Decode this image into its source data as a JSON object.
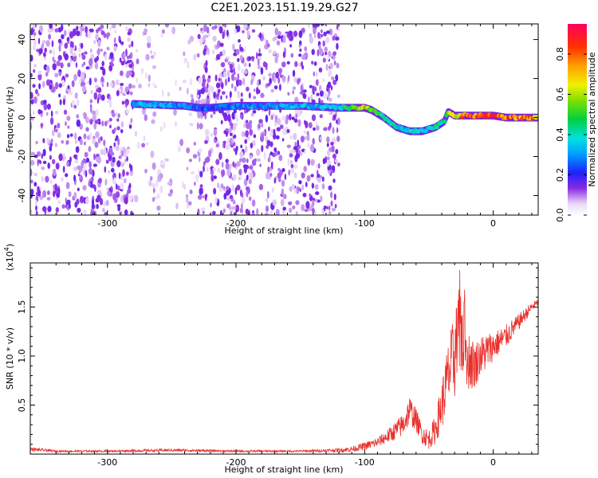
{
  "title": "C2E1.2023.151.19.29.G27",
  "chart_data": [
    {
      "type": "heatmap",
      "xlabel": "Height of straight line (km)",
      "ylabel": "Frequency (Hz)",
      "xlim": [
        -360,
        35
      ],
      "ylim": [
        -50,
        48
      ],
      "xticks": [
        -300,
        -200,
        -100,
        0
      ],
      "yticks": [
        -40,
        -20,
        0,
        20,
        40
      ],
      "xtick_labels": [
        "-300",
        "-200",
        "-100",
        "0"
      ],
      "ytick_labels": [
        "-40",
        "-20",
        "0",
        "20",
        "40"
      ],
      "grid": false,
      "colorbar": {
        "label": "Normalized spectral amplitude",
        "range": [
          0,
          0.95
        ],
        "ticks": [
          "0.0",
          "0.2",
          "0.4",
          "0.6",
          "0.8"
        ]
      },
      "ridge": {
        "x": [
          -280,
          -240,
          -230,
          -220,
          -200,
          -150,
          -120,
          -110,
          -100,
          -95,
          -85,
          -75,
          -65,
          -55,
          -45,
          -38,
          -35,
          -30,
          -20,
          -10,
          0,
          10,
          20,
          35
        ],
        "y": [
          7,
          6,
          5,
          5,
          6,
          6,
          5,
          5,
          5,
          4,
          0,
          -5,
          -7,
          -7,
          -5,
          -2,
          3,
          1,
          1,
          1,
          1,
          0,
          0,
          0
        ],
        "peak_amplitude": [
          0.35,
          0.3,
          0.28,
          0.25,
          0.3,
          0.35,
          0.4,
          0.6,
          0.7,
          0.6,
          0.45,
          0.4,
          0.4,
          0.4,
          0.45,
          0.5,
          0.55,
          0.7,
          0.85,
          0.9,
          0.9,
          0.85,
          0.85,
          0.8
        ]
      },
      "noise_regions": [
        {
          "x": [
            -360,
            -280
          ],
          "density": "high"
        },
        {
          "x": [
            -280,
            -230
          ],
          "density": "medium"
        },
        {
          "x": [
            -230,
            -120
          ],
          "density": "high"
        }
      ]
    },
    {
      "type": "line",
      "xlabel": "Height of straight line (km)",
      "ylabel": "SNR (10 * v/v)",
      "y_scale_label": "(x10^4)",
      "y_scale_base": "(x10",
      "y_scale_exp": "4",
      "xlim": [
        -360,
        35
      ],
      "ylim": [
        0,
        1.95
      ],
      "xticks": [
        -300,
        -200,
        -100,
        0
      ],
      "yticks": [
        0.5,
        1.0,
        1.5
      ],
      "xtick_labels": [
        "-300",
        "-200",
        "-100",
        "0"
      ],
      "ytick_labels": [
        "0.5",
        "1.0",
        "1.5"
      ],
      "grid": false,
      "series": [
        {
          "color": "#e8302c",
          "x": [
            -360,
            -340,
            -300,
            -250,
            -200,
            -150,
            -120,
            -110,
            -100,
            -90,
            -80,
            -70,
            -65,
            -60,
            -55,
            -50,
            -45,
            -40,
            -35,
            -30,
            -25,
            -20,
            -15,
            -10,
            -5,
            0,
            10,
            20,
            30,
            35
          ],
          "y": [
            0.05,
            0.03,
            0.03,
            0.04,
            0.03,
            0.03,
            0.04,
            0.05,
            0.08,
            0.12,
            0.2,
            0.3,
            0.45,
            0.35,
            0.2,
            0.15,
            0.25,
            0.5,
            0.8,
            1.0,
            1.3,
            1.0,
            0.9,
            1.0,
            1.05,
            1.1,
            1.2,
            1.35,
            1.5,
            1.55
          ],
          "noise_amplitude": [
            0.02,
            0.01,
            0.01,
            0.015,
            0.01,
            0.01,
            0.02,
            0.03,
            0.04,
            0.05,
            0.08,
            0.12,
            0.15,
            0.12,
            0.1,
            0.1,
            0.15,
            0.25,
            0.35,
            0.45,
            0.5,
            0.35,
            0.25,
            0.2,
            0.2,
            0.15,
            0.12,
            0.08,
            0.05,
            0.03
          ]
        }
      ]
    }
  ]
}
